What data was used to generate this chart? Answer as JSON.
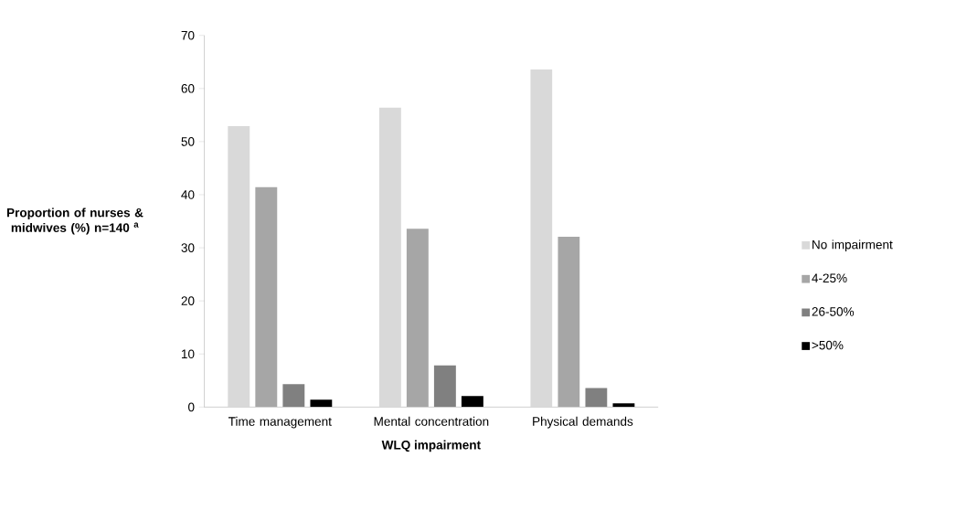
{
  "chart_data": {
    "type": "bar",
    "xlabel": "WLQ impairment",
    "ylabel": "**Proportion of nurses & midwives (%) n=140 $^{a}$**",
    "categories": [
      "Time management",
      "Mental concentration",
      "Physical demands"
    ],
    "series": [
      {
        "name": "No impairment",
        "color": "#d9d9d9",
        "values": [
          52.9,
          56.4,
          63.6
        ]
      },
      {
        "name": "4-25%",
        "color": "#a6a6a6",
        "values": [
          41.4,
          33.6,
          32.1
        ]
      },
      {
        "name": "26-50%",
        "color": "#808080",
        "values": [
          4.3,
          7.9,
          3.6
        ]
      },
      {
        "name": ">50%",
        "color": "#000000",
        "values": [
          1.4,
          2.1,
          0.7
        ]
      }
    ],
    "ylim": [
      0,
      70
    ],
    "yticks": [
      0,
      10,
      20,
      30,
      40,
      50,
      60,
      70
    ],
    "grid": false,
    "legend": "right"
  }
}
